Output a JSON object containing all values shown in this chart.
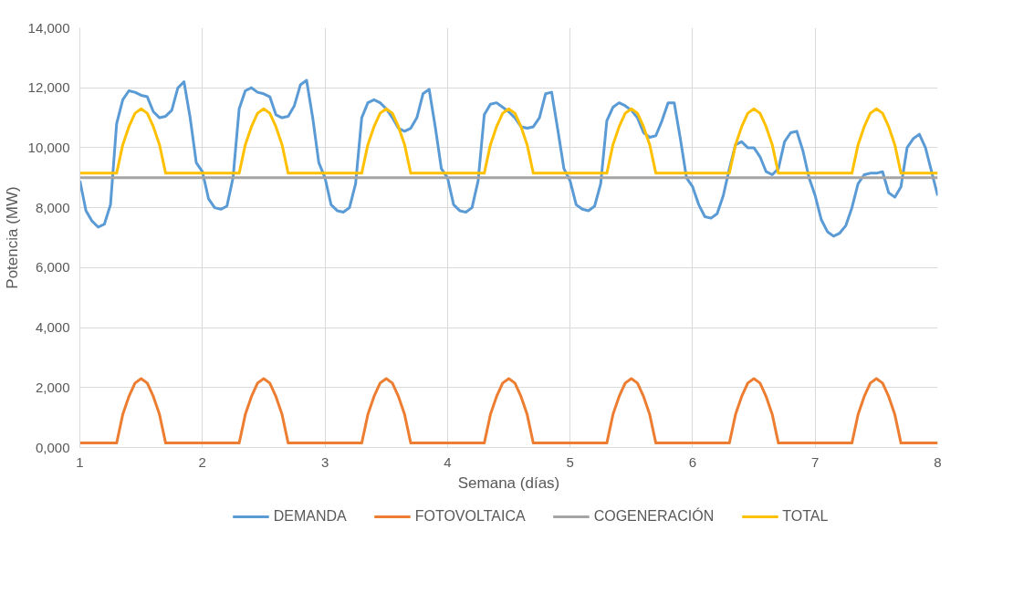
{
  "chart_data": {
    "type": "line",
    "xlabel": "Semana (días)",
    "ylabel": "Potencia (MW)",
    "xlim": [
      1,
      8
    ],
    "xticks": [
      1,
      2,
      3,
      4,
      5,
      6,
      7,
      8
    ],
    "ylim": [
      0,
      14000
    ],
    "yticks": [
      {
        "value": 0,
        "label": "0,000"
      },
      {
        "value": 2000,
        "label": "2,000"
      },
      {
        "value": 4000,
        "label": "4,000"
      },
      {
        "value": 6000,
        "label": "6,000"
      },
      {
        "value": 8000,
        "label": "8,000"
      },
      {
        "value": 10000,
        "label": "10,000"
      },
      {
        "value": 12000,
        "label": "12,000"
      },
      {
        "value": 14000,
        "label": "14,000"
      }
    ],
    "grid": true,
    "legend": "bottom",
    "marker": "none",
    "line_style": "solid",
    "series": [
      {
        "name": "DEMANDA",
        "color": "#5b9bd5",
        "x": [
          1,
          1.05,
          1.1,
          1.15,
          1.2,
          1.25,
          1.3,
          1.35,
          1.4,
          1.45,
          1.5,
          1.55,
          1.6,
          1.65,
          1.7,
          1.75,
          1.8,
          1.85,
          1.9,
          1.95,
          2,
          2.05,
          2.1,
          2.15,
          2.2,
          2.25,
          2.3,
          2.35,
          2.4,
          2.45,
          2.5,
          2.55,
          2.6,
          2.65,
          2.7,
          2.75,
          2.8,
          2.85,
          2.9,
          2.95,
          3,
          3.05,
          3.1,
          3.15,
          3.2,
          3.25,
          3.3,
          3.35,
          3.4,
          3.45,
          3.5,
          3.55,
          3.6,
          3.65,
          3.7,
          3.75,
          3.8,
          3.85,
          3.9,
          3.95,
          4,
          4.05,
          4.1,
          4.15,
          4.2,
          4.25,
          4.3,
          4.35,
          4.4,
          4.45,
          4.5,
          4.55,
          4.6,
          4.65,
          4.7,
          4.75,
          4.8,
          4.85,
          4.9,
          4.95,
          5,
          5.05,
          5.1,
          5.15,
          5.2,
          5.25,
          5.3,
          5.35,
          5.4,
          5.45,
          5.5,
          5.55,
          5.6,
          5.65,
          5.7,
          5.75,
          5.8,
          5.85,
          5.9,
          5.95,
          6,
          6.05,
          6.1,
          6.15,
          6.2,
          6.25,
          6.3,
          6.35,
          6.4,
          6.45,
          6.5,
          6.55,
          6.6,
          6.65,
          6.7,
          6.75,
          6.8,
          6.85,
          6.9,
          6.95,
          7,
          7.05,
          7.1,
          7.15,
          7.2,
          7.25,
          7.3,
          7.35,
          7.4,
          7.45,
          7.5,
          7.55,
          7.6,
          7.65,
          7.7,
          7.75,
          7.8,
          7.85,
          7.9,
          7.95,
          8
        ],
        "values": [
          8900,
          7900,
          7550,
          7350,
          7450,
          8100,
          10800,
          11600,
          11900,
          11850,
          11750,
          11700,
          11200,
          11000,
          11050,
          11250,
          12000,
          12200,
          11000,
          9500,
          9200,
          8300,
          8000,
          7950,
          8050,
          9000,
          11300,
          11900,
          12000,
          11850,
          11800,
          11700,
          11100,
          11000,
          11050,
          11400,
          12100,
          12250,
          11000,
          9500,
          9000,
          8100,
          7900,
          7850,
          8000,
          8800,
          11000,
          11500,
          11600,
          11500,
          11300,
          11000,
          10650,
          10550,
          10650,
          11000,
          11800,
          11950,
          10700,
          9300,
          9000,
          8100,
          7900,
          7850,
          8000,
          8900,
          11100,
          11450,
          11500,
          11350,
          11200,
          11000,
          10700,
          10650,
          10700,
          11000,
          11800,
          11850,
          10600,
          9300,
          8900,
          8100,
          7950,
          7900,
          8050,
          8800,
          10900,
          11350,
          11500,
          11400,
          11250,
          11000,
          10500,
          10350,
          10400,
          10900,
          11500,
          11500,
          10300,
          9000,
          8700,
          8100,
          7700,
          7650,
          7800,
          8400,
          9300,
          10100,
          10200,
          10000,
          10000,
          9700,
          9200,
          9100,
          9300,
          10200,
          10500,
          10550,
          9900,
          9000,
          8400,
          7600,
          7200,
          7050,
          7150,
          7400,
          8000,
          8800,
          9100,
          9150,
          9150,
          9200,
          8500,
          8350,
          8700,
          10000,
          10300,
          10450,
          10000,
          9200,
          8400
        ]
      },
      {
        "name": "FOTOVOLTAICA",
        "color": "#ed7d31",
        "x": [
          1,
          1.3,
          1.35,
          1.4,
          1.45,
          1.5,
          1.55,
          1.6,
          1.65,
          1.7,
          2,
          2.3,
          2.35,
          2.4,
          2.45,
          2.5,
          2.55,
          2.6,
          2.65,
          2.7,
          3,
          3.3,
          3.35,
          3.4,
          3.45,
          3.5,
          3.55,
          3.6,
          3.65,
          3.7,
          4,
          4.3,
          4.35,
          4.4,
          4.45,
          4.5,
          4.55,
          4.6,
          4.65,
          4.7,
          5,
          5.3,
          5.35,
          5.4,
          5.45,
          5.5,
          5.55,
          5.6,
          5.65,
          5.7,
          6,
          6.3,
          6.35,
          6.4,
          6.45,
          6.5,
          6.55,
          6.6,
          6.65,
          6.7,
          7,
          7.3,
          7.35,
          7.4,
          7.45,
          7.5,
          7.55,
          7.6,
          7.65,
          7.7,
          8
        ],
        "values": [
          150,
          150,
          1100,
          1700,
          2150,
          2300,
          2150,
          1700,
          1100,
          150,
          150,
          150,
          1100,
          1700,
          2150,
          2300,
          2150,
          1700,
          1100,
          150,
          150,
          150,
          1100,
          1700,
          2150,
          2300,
          2150,
          1700,
          1100,
          150,
          150,
          150,
          1100,
          1700,
          2150,
          2300,
          2150,
          1700,
          1100,
          150,
          150,
          150,
          1100,
          1700,
          2150,
          2300,
          2150,
          1700,
          1100,
          150,
          150,
          150,
          1100,
          1700,
          2150,
          2300,
          2150,
          1700,
          1100,
          150,
          150,
          150,
          1100,
          1700,
          2150,
          2300,
          2150,
          1700,
          1100,
          150,
          150
        ]
      },
      {
        "name": "COGENERACIÓN",
        "color": "#a5a5a5",
        "x": [
          1,
          8
        ],
        "values": [
          9000,
          9000
        ]
      },
      {
        "name": "TOTAL",
        "color": "#ffc000",
        "x": [
          1,
          1.3,
          1.35,
          1.4,
          1.45,
          1.5,
          1.55,
          1.6,
          1.65,
          1.7,
          2,
          2.3,
          2.35,
          2.4,
          2.45,
          2.5,
          2.55,
          2.6,
          2.65,
          2.7,
          3,
          3.3,
          3.35,
          3.4,
          3.45,
          3.5,
          3.55,
          3.6,
          3.65,
          3.7,
          4,
          4.3,
          4.35,
          4.4,
          4.45,
          4.5,
          4.55,
          4.6,
          4.65,
          4.7,
          5,
          5.3,
          5.35,
          5.4,
          5.45,
          5.5,
          5.55,
          5.6,
          5.65,
          5.7,
          6,
          6.3,
          6.35,
          6.4,
          6.45,
          6.5,
          6.55,
          6.6,
          6.65,
          6.7,
          7,
          7.3,
          7.35,
          7.4,
          7.45,
          7.5,
          7.55,
          7.6,
          7.65,
          7.7,
          8
        ],
        "values": [
          9150,
          9150,
          10100,
          10700,
          11150,
          11300,
          11150,
          10700,
          10100,
          9150,
          9150,
          9150,
          10100,
          10700,
          11150,
          11300,
          11150,
          10700,
          10100,
          9150,
          9150,
          9150,
          10100,
          10700,
          11150,
          11300,
          11150,
          10700,
          10100,
          9150,
          9150,
          9150,
          10100,
          10700,
          11150,
          11300,
          11150,
          10700,
          10100,
          9150,
          9150,
          9150,
          10100,
          10700,
          11150,
          11300,
          11150,
          10700,
          10100,
          9150,
          9150,
          9150,
          10100,
          10700,
          11150,
          11300,
          11150,
          10700,
          10100,
          9150,
          9150,
          9150,
          10100,
          10700,
          11150,
          11300,
          11150,
          10700,
          10100,
          9150,
          9150
        ]
      }
    ]
  }
}
